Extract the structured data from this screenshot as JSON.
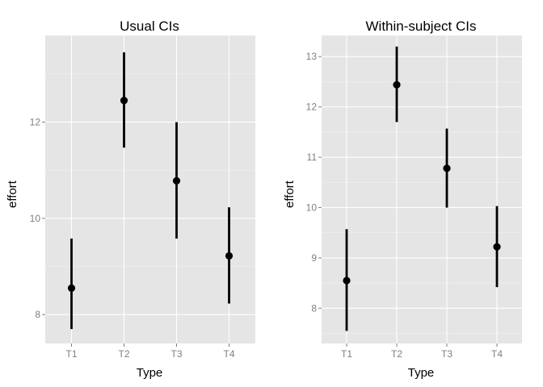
{
  "chart_data": [
    {
      "type": "scatter",
      "title": "Usual CIs",
      "xlabel": "Type",
      "ylabel": "effort",
      "categories": [
        "T1",
        "T2",
        "T3",
        "T4"
      ],
      "values": [
        8.55,
        12.45,
        10.78,
        9.22
      ],
      "lower": [
        7.7,
        11.47,
        9.58,
        8.23
      ],
      "upper": [
        9.58,
        13.45,
        12.0,
        10.23
      ],
      "ylim": [
        7.4,
        13.8
      ],
      "yticks": [
        8,
        10,
        12
      ],
      "ytick_labels": [
        "8",
        "10",
        "12"
      ],
      "grid": true
    },
    {
      "type": "scatter",
      "title": "Within-subject CIs",
      "xlabel": "Type",
      "ylabel": "effort",
      "categories": [
        "T1",
        "T2",
        "T3",
        "T4"
      ],
      "values": [
        8.55,
        12.44,
        10.78,
        9.22
      ],
      "lower": [
        7.55,
        11.7,
        10.0,
        8.42
      ],
      "upper": [
        9.57,
        13.2,
        11.57,
        10.03
      ],
      "ylim": [
        7.3,
        13.42
      ],
      "yticks": [
        8,
        9,
        10,
        11,
        12,
        13
      ],
      "ytick_labels": [
        "8",
        "9",
        "10",
        "11",
        "12",
        "13"
      ],
      "grid": true
    }
  ]
}
